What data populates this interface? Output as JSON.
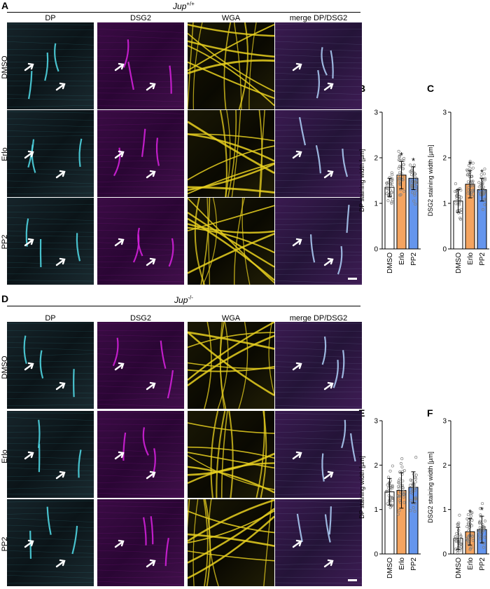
{
  "panels": {
    "A": "A",
    "B": "B",
    "C": "C",
    "D": "D",
    "E": "E",
    "F": "F"
  },
  "genotype_top": {
    "base": "Jup",
    "sup": "+/+"
  },
  "genotype_bottom": {
    "base": "Jup",
    "sup": "-/-"
  },
  "column_headers": [
    "DP",
    "DSG2",
    "WGA",
    "merge DP/DSG2"
  ],
  "row_labels": [
    "DMSO",
    "Erlo",
    "PP2"
  ],
  "colors": {
    "cyan_channel": "#4fd4e0",
    "magenta_channel": "#d020d8",
    "yellow_channel": "#e8d020",
    "bar_dmso": "#ffffff",
    "bar_erlo": "#f4a460",
    "bar_pp2": "#6495ed",
    "point": "#808080"
  },
  "chart_data": [
    {
      "panel": "B",
      "type": "bar",
      "categories": [
        "DMSO",
        "Erlo",
        "PP2"
      ],
      "values": [
        1.35,
        1.62,
        1.55
      ],
      "sd": [
        0.2,
        0.3,
        0.25
      ],
      "significance": [
        "",
        "*",
        "*"
      ],
      "ylabel": "DP staining width [µm]",
      "ylim": [
        0,
        3
      ],
      "yticks": [
        "0",
        "1",
        "2",
        "3"
      ]
    },
    {
      "panel": "C",
      "type": "bar",
      "categories": [
        "DMSO",
        "Erlo",
        "PP2"
      ],
      "values": [
        1.05,
        1.42,
        1.3
      ],
      "sd": [
        0.25,
        0.3,
        0.25
      ],
      "significance": [
        "",
        "*",
        "*"
      ],
      "ylabel": "DSG2 staining width [µm]",
      "ylim": [
        0,
        3
      ],
      "yticks": [
        "0",
        "1",
        "2",
        "3"
      ]
    },
    {
      "panel": "E",
      "type": "bar",
      "categories": [
        "DMSO",
        "Erlo",
        "PP2"
      ],
      "values": [
        1.4,
        1.43,
        1.5
      ],
      "sd": [
        0.3,
        0.4,
        0.35
      ],
      "significance": [
        "",
        "",
        ""
      ],
      "ylabel": "DP staining width [µm]",
      "ylim": [
        0,
        3
      ],
      "yticks": [
        "0",
        "1",
        "2",
        "3"
      ]
    },
    {
      "panel": "F",
      "type": "bar",
      "categories": [
        "DMSO",
        "Erlo",
        "PP2"
      ],
      "values": [
        0.35,
        0.5,
        0.55
      ],
      "sd": [
        0.25,
        0.3,
        0.3
      ],
      "significance": [
        "",
        "*",
        "*"
      ],
      "ylabel": "DSG2 staining width [µm]",
      "ylim": [
        0,
        3
      ],
      "yticks": [
        "0",
        "1",
        "2",
        "3"
      ]
    }
  ]
}
